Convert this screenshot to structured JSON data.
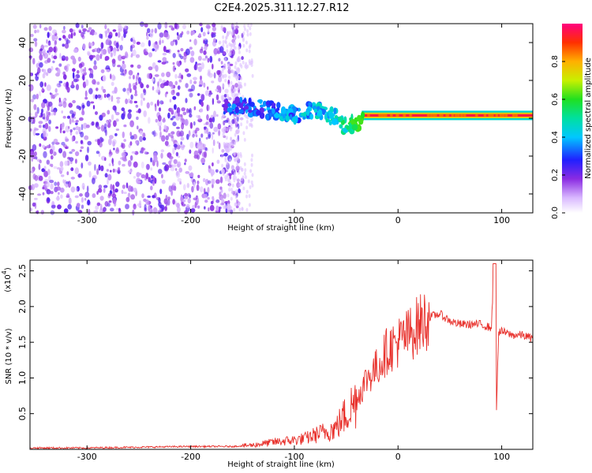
{
  "title": "C2E4.2025.311.12.27.R12",
  "colors": {
    "line": "#e8302b",
    "axis": "#000000"
  },
  "chart_data": [
    {
      "type": "heatmap",
      "name": "spectrogram",
      "xlabel": "Height of straight line (km)",
      "ylabel": "Frequency (Hz)",
      "xlim": [
        -355,
        130
      ],
      "ylim": [
        -50,
        50
      ],
      "xticks": [
        -300,
        -200,
        -100,
        0,
        100
      ],
      "xtick_labels": [
        "-300",
        "-200",
        "-100",
        "0",
        "100"
      ],
      "yticks": [
        -40,
        -20,
        0,
        20,
        40
      ],
      "ytick_labels": [
        "-40",
        "-20",
        "0",
        "20",
        "40"
      ],
      "colorbar": {
        "label": "Normalized spectral amplitude",
        "range": [
          0,
          1
        ],
        "ticks": [
          0,
          0.2,
          0.4,
          0.6,
          0.8
        ],
        "tick_labels": [
          "0.0",
          "0.2",
          "0.4",
          "0.6",
          "0.8"
        ]
      },
      "ridge": {
        "description_points_x": [
          -160,
          -130,
          -100,
          -80,
          -60,
          -50,
          -40,
          -30,
          0,
          50,
          90,
          130
        ],
        "frequency_hz": [
          6,
          5,
          2,
          5,
          0,
          -5,
          -2,
          0,
          1,
          1,
          2,
          2
        ],
        "amplitude": [
          0.3,
          0.35,
          0.4,
          0.45,
          0.5,
          0.55,
          0.7,
          0.8,
          0.9,
          0.95,
          0.9,
          0.95
        ]
      }
    },
    {
      "type": "line",
      "name": "snr",
      "xlabel": "Height of straight line (km)",
      "ylabel": "SNR (10 * v/v)",
      "y_multiplier_label": "(x10",
      "y_multiplier_exp": "4",
      "xlim": [
        -355,
        130
      ],
      "ylim": [
        0,
        2.65
      ],
      "xticks": [
        -300,
        -200,
        -100,
        0,
        100
      ],
      "xtick_labels": [
        "-300",
        "-200",
        "-100",
        "0",
        "100"
      ],
      "yticks": [
        0.5,
        1.0,
        1.5,
        2.0,
        2.5
      ],
      "ytick_labels": [
        "0.5",
        "1.0",
        "1.5",
        "2.0",
        "2.5"
      ],
      "series": [
        {
          "name": "SNR",
          "x": [
            -355,
            -300,
            -250,
            -200,
            -160,
            -140,
            -120,
            -100,
            -90,
            -80,
            -70,
            -60,
            -50,
            -40,
            -30,
            -20,
            -10,
            0,
            10,
            20,
            30,
            40,
            50,
            60,
            70,
            80,
            90,
            93,
            95,
            97,
            100,
            110,
            120,
            130
          ],
          "y": [
            0.02,
            0.02,
            0.03,
            0.04,
            0.04,
            0.06,
            0.1,
            0.13,
            0.15,
            0.2,
            0.25,
            0.3,
            0.5,
            0.7,
            1.0,
            1.15,
            1.4,
            1.5,
            1.6,
            1.75,
            1.85,
            1.9,
            1.8,
            1.75,
            1.75,
            1.75,
            1.7,
            2.6,
            0.55,
            1.65,
            1.65,
            1.6,
            1.6,
            1.55
          ]
        }
      ],
      "spike": {
        "x": 93,
        "peak": 2.6,
        "dip": 0.55
      }
    }
  ]
}
